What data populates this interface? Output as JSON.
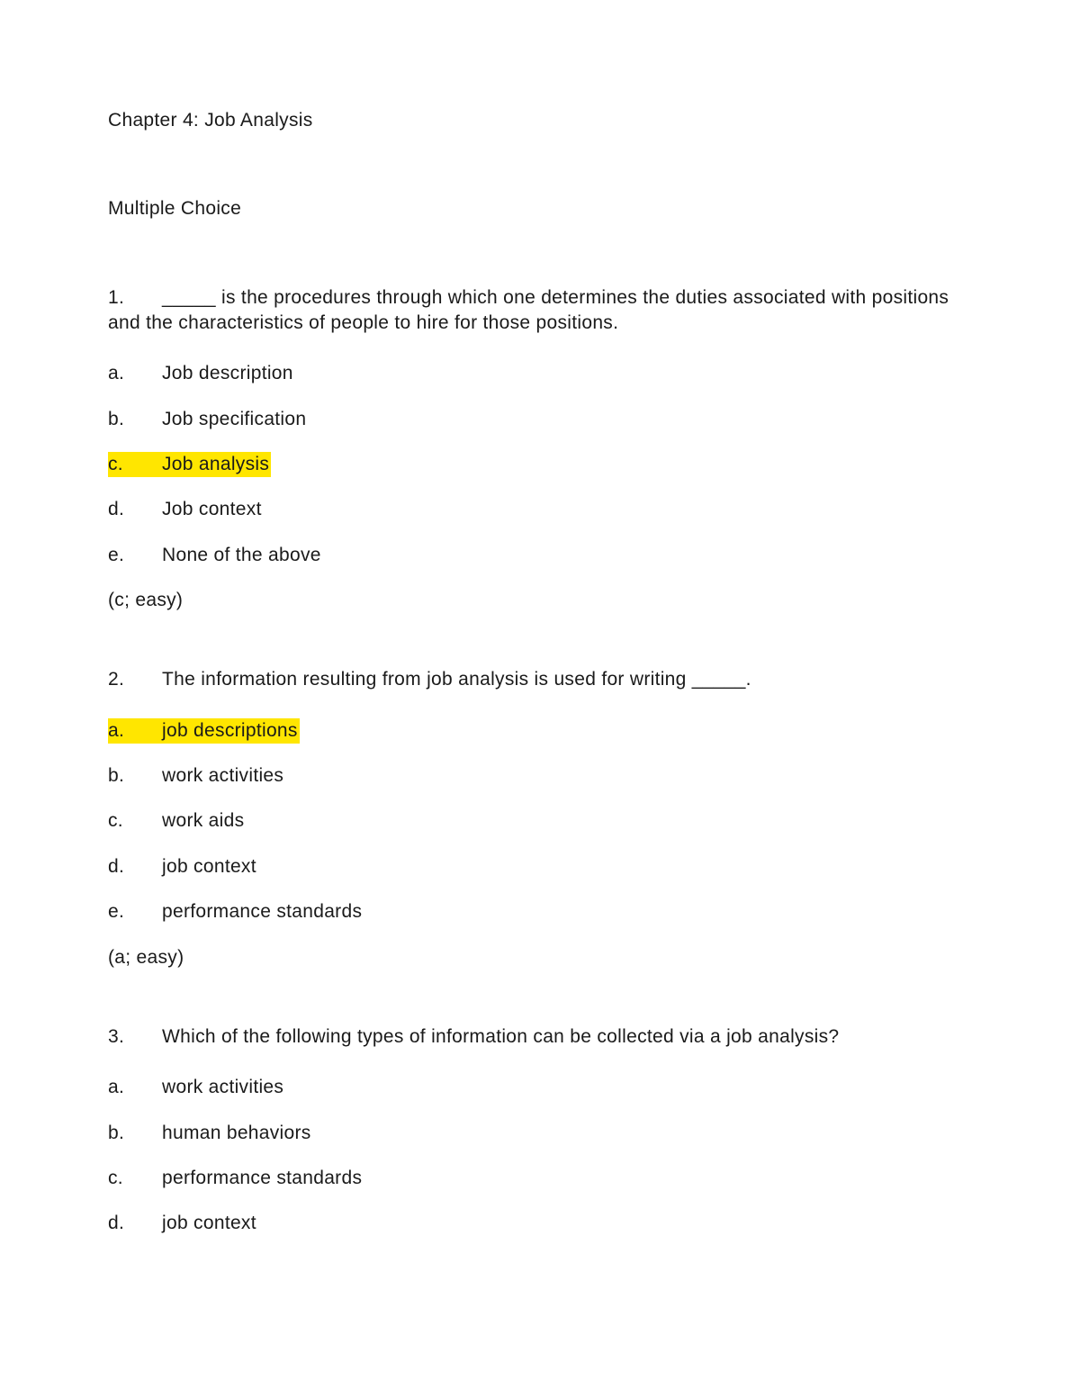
{
  "highlight_color": "#ffe600",
  "text_color": "#1a1a1a",
  "background_color": "#ffffff",
  "font_family": "Verdana",
  "font_size_pt": 16,
  "chapter_title": "Chapter 4: Job Analysis",
  "section_title": "Multiple Choice",
  "questions": [
    {
      "number": "1.",
      "stem": "_____ is the procedures through which one determines the duties associated with positions and the characteristics of people to hire for those positions.",
      "options": [
        {
          "letter": "a.",
          "text": "Job description",
          "highlighted": false
        },
        {
          "letter": "b.",
          "text": "Job specification",
          "highlighted": false
        },
        {
          "letter": "c.",
          "text": "Job analysis",
          "highlighted": true
        },
        {
          "letter": "d.",
          "text": "Job context",
          "highlighted": false
        },
        {
          "letter": "e.",
          "text": "None of the above",
          "highlighted": false
        }
      ],
      "answer_key": "(c; easy)"
    },
    {
      "number": "2.",
      "stem": "The information resulting from job analysis is used for writing _____.",
      "options": [
        {
          "letter": "a.",
          "text": "job descriptions",
          "highlighted": true
        },
        {
          "letter": "b.",
          "text": "work activities",
          "highlighted": false
        },
        {
          "letter": "c.",
          "text": "work aids",
          "highlighted": false
        },
        {
          "letter": "d.",
          "text": "job context",
          "highlighted": false
        },
        {
          "letter": "e.",
          "text": "performance standards",
          "highlighted": false
        }
      ],
      "answer_key": "(a; easy)"
    },
    {
      "number": "3.",
      "stem": "Which of the following types of information can be collected via a job analysis?",
      "options": [
        {
          "letter": "a.",
          "text": "work activities",
          "highlighted": false
        },
        {
          "letter": "b.",
          "text": "human behaviors",
          "highlighted": false
        },
        {
          "letter": "c.",
          "text": "performance standards",
          "highlighted": false
        },
        {
          "letter": "d.",
          "text": "job context",
          "highlighted": false
        }
      ],
      "answer_key": ""
    }
  ]
}
